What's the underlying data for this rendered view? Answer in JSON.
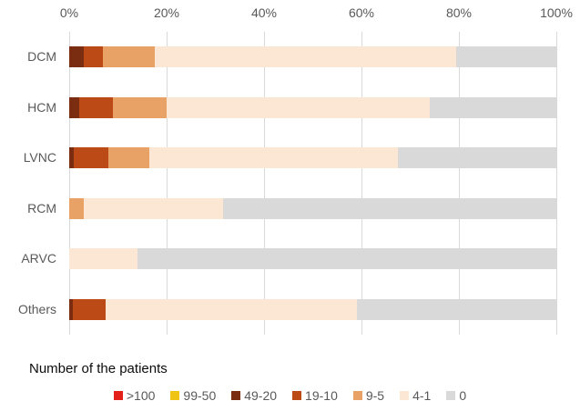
{
  "chart_data": {
    "type": "bar",
    "orientation": "horizontal",
    "stacked": true,
    "title": "",
    "legend_title": "Number of the patients",
    "legend_position": "bottom",
    "grid": "vertical",
    "x_ticks": [
      "0%",
      "20%",
      "40%",
      "60%",
      "80%",
      "100%"
    ],
    "xlim": [
      0,
      100
    ],
    "categories": [
      "DCM",
      "HCM",
      "LVNC",
      "RCM",
      "ARVC",
      "Others"
    ],
    "series": [
      {
        "name": ">100",
        "color": "#e32019",
        "values": [
          0,
          0,
          0,
          0,
          0,
          0
        ]
      },
      {
        "name": "99-50",
        "color": "#f0c414",
        "values": [
          0,
          0,
          0,
          0,
          0,
          0
        ]
      },
      {
        "name": "49-20",
        "color": "#7b2d12",
        "values": [
          3,
          2,
          1,
          0,
          0,
          0.7
        ]
      },
      {
        "name": "19-10",
        "color": "#bc4a16",
        "values": [
          4,
          7,
          7,
          0,
          0,
          6.8
        ]
      },
      {
        "name": "9-5",
        "color": "#e9a265",
        "values": [
          10.5,
          11,
          8.5,
          3,
          0,
          0
        ]
      },
      {
        "name": "4-1",
        "color": "#fce6d4",
        "values": [
          62,
          54,
          51,
          28.5,
          14,
          51.5
        ]
      },
      {
        "name": "0",
        "color": "#d9d9d9",
        "values": [
          20.5,
          26,
          32.5,
          68.5,
          86,
          41
        ]
      }
    ],
    "colors": {
      "gridline": "#d9d9d9",
      "axis_text": "#595959",
      "legend_text": "#595959",
      "legend_title_text": "#0d0d0d"
    }
  }
}
